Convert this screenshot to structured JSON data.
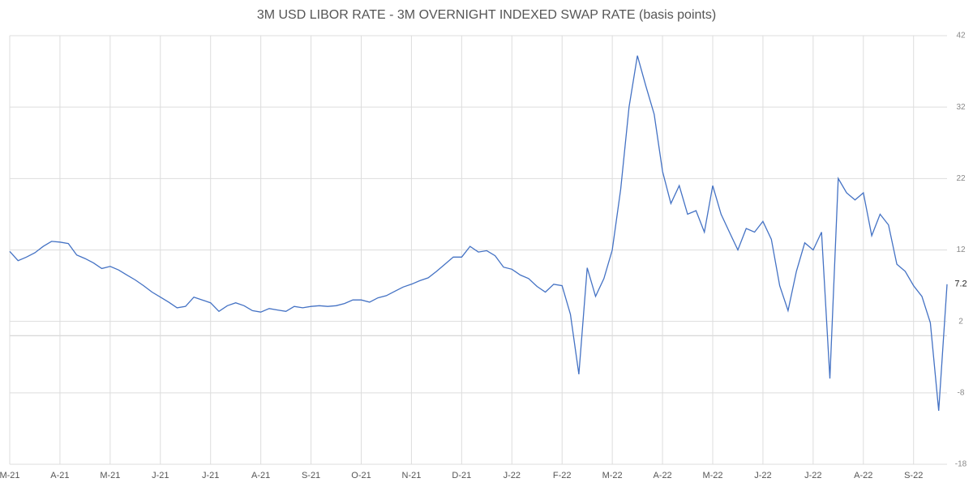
{
  "chart_data": {
    "type": "line",
    "title": "3M USD LIBOR RATE - 3M OVERNIGHT INDEXED SWAP RATE (basis points)",
    "categories": [
      "M-21",
      null,
      null,
      null,
      null,
      null,
      "A-21",
      null,
      null,
      null,
      null,
      null,
      "M-21",
      null,
      null,
      null,
      null,
      null,
      "J-21",
      null,
      null,
      null,
      null,
      null,
      "J-21",
      null,
      null,
      null,
      null,
      null,
      "A-21",
      null,
      null,
      null,
      null,
      null,
      "S-21",
      null,
      null,
      null,
      null,
      null,
      "O-21",
      null,
      null,
      null,
      null,
      null,
      "N-21",
      null,
      null,
      null,
      null,
      null,
      "D-21",
      null,
      null,
      null,
      null,
      null,
      "J-22",
      null,
      null,
      null,
      null,
      null,
      "F-22",
      null,
      null,
      null,
      null,
      null,
      "M-22",
      null,
      null,
      null,
      null,
      null,
      "A-22",
      null,
      null,
      null,
      null,
      null,
      "M-22",
      null,
      null,
      null,
      null,
      null,
      "J-22",
      null,
      null,
      null,
      null,
      null,
      "J-22",
      null,
      null,
      null,
      null,
      null,
      "A-22",
      null,
      null,
      null,
      null,
      null,
      "S-22",
      null,
      null,
      null,
      null
    ],
    "values": [
      11.8,
      10.5,
      11.0,
      11.6,
      12.5,
      13.2,
      13.1,
      12.9,
      11.3,
      10.8,
      10.2,
      9.4,
      9.7,
      9.2,
      8.5,
      7.8,
      7.0,
      6.1,
      5.4,
      4.7,
      3.9,
      4.1,
      5.4,
      5.0,
      4.6,
      3.4,
      4.2,
      4.6,
      4.2,
      3.5,
      3.3,
      3.8,
      3.6,
      3.4,
      4.1,
      3.9,
      4.1,
      4.2,
      4.1,
      4.2,
      4.5,
      5.0,
      5.0,
      4.7,
      5.3,
      5.6,
      6.2,
      6.8,
      7.2,
      7.7,
      8.1,
      9.0,
      10.0,
      11.0,
      11.0,
      12.5,
      11.7,
      11.9,
      11.2,
      9.6,
      9.3,
      8.5,
      8.0,
      6.9,
      6.1,
      7.2,
      7.0,
      3.0,
      -5.4,
      9.5,
      5.5,
      8.0,
      12.0,
      20.5,
      32.0,
      39.2,
      35.0,
      31.0,
      23.0,
      18.5,
      21.0,
      17.0,
      17.5,
      14.5,
      21.0,
      17.0,
      14.5,
      12.0,
      15.0,
      14.5,
      16.0,
      13.5,
      7.0,
      3.5,
      9.0,
      13.0,
      12.0,
      14.5,
      -6.0,
      22.0,
      20.0,
      19.0,
      20.0,
      14.0,
      17.0,
      15.5,
      10.0,
      9.0,
      7.0,
      5.5,
      1.8,
      -10.5,
      7.2
    ],
    "color": "#4472c4",
    "ylim": [
      -18,
      42
    ],
    "yticks": [
      -18,
      -8,
      2,
      12,
      22,
      32,
      42
    ],
    "grid": true
  }
}
